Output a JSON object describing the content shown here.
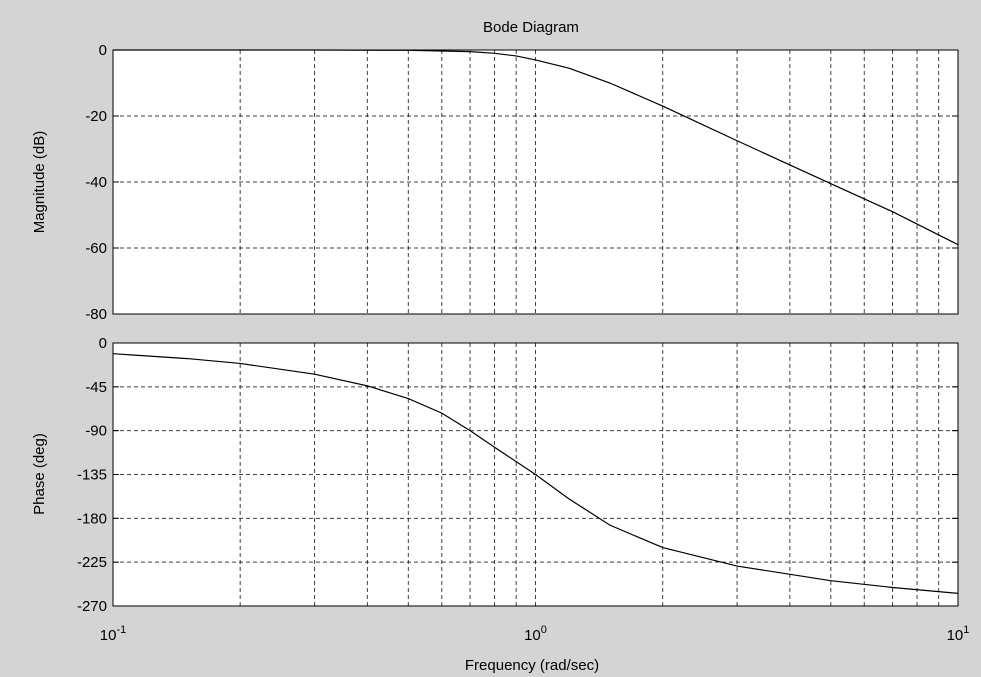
{
  "chart_data": {
    "type": "line",
    "title": "Bode Diagram",
    "xlabel": "Frequency (rad/sec)",
    "xscale": "log",
    "xlim": [
      0.1,
      10
    ],
    "x_tick_labels": [
      {
        "base": "10",
        "exp": "-1"
      },
      {
        "base": "10",
        "exp": "0"
      },
      {
        "base": "10",
        "exp": "1"
      }
    ],
    "grid": true,
    "panels": [
      {
        "id": "magnitude",
        "ylabel": "Magnitude (dB)",
        "ylim": [
          -80,
          0
        ],
        "yticks": [
          "0",
          "-20",
          "-40",
          "-60",
          "-80"
        ],
        "series": [
          {
            "x": [
              0.1,
              0.2,
              0.3,
              0.5,
              0.7,
              0.8,
              0.9,
              1.0,
              1.2,
              1.5,
              2.0,
              3.0,
              5.0,
              7.0,
              10.0
            ],
            "y": [
              0,
              0,
              0,
              -0.1,
              -0.5,
              -1.0,
              -1.8,
              -3,
              -5.5,
              -10,
              -17,
              -27.5,
              -40.5,
              -49,
              -59
            ]
          }
        ]
      },
      {
        "id": "phase",
        "ylabel": "Phase (deg)",
        "ylim": [
          -270,
          0
        ],
        "yticks": [
          "0",
          "-45",
          "-90",
          "-135",
          "-180",
          "-225",
          "-270"
        ],
        "series": [
          {
            "x": [
              0.1,
              0.15,
              0.2,
              0.3,
              0.4,
              0.5,
              0.6,
              0.7,
              0.8,
              1.0,
              1.2,
              1.5,
              2.0,
              3.0,
              5.0,
              7.0,
              10.0
            ],
            "y": [
              -11,
              -16,
              -21,
              -32,
              -44,
              -57,
              -72,
              -90,
              -107,
              -135,
              -160,
              -187,
              -210,
              -229,
              -244,
              -251,
              -257
            ]
          }
        ]
      }
    ]
  }
}
